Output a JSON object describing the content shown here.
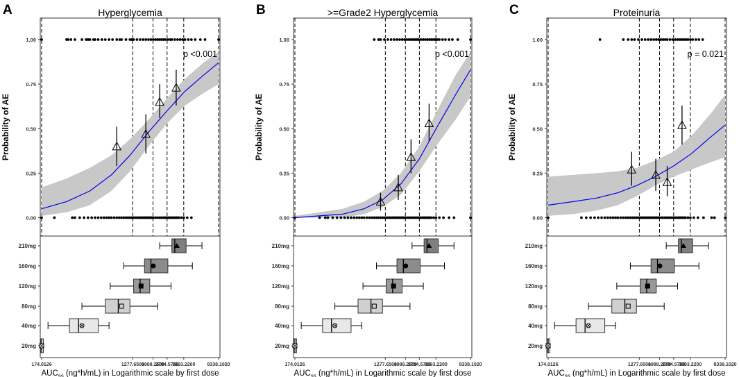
{
  "figure": {
    "x_axis_title_main": "AUC",
    "x_axis_title_sub": "ss",
    "x_axis_title_rest": " (ng*h/mL) in Logarithmic scale by first dose",
    "y_axis_title": "Probability of AE",
    "x_ticks": [
      174.0126,
      1277.65,
      1988.26,
      2704.57,
      3893.22,
      8338.102
    ],
    "x_tick_labels": [
      "174.0126",
      "1277.6500",
      "1988.2600",
      "2704.5700",
      "3893.2200",
      "8338.1020"
    ],
    "y_ticks": [
      0,
      0.25,
      0.5,
      0.75,
      1.0
    ],
    "y_tick_labels": [
      "0.00",
      "0.25",
      "0.50",
      "0.75",
      "1.00"
    ],
    "dose_labels": [
      "210mg",
      "160mg",
      "120mg",
      "80mg",
      "40mg",
      "20mg"
    ]
  },
  "chart_data": [
    {
      "type": "scatter",
      "panel_letter": "A",
      "title": "Hyperglycemia",
      "p_value": "p <0.001",
      "xlim": [
        174.0126,
        8338.102
      ],
      "ylim": [
        0,
        1
      ],
      "logistic_fit": {
        "x": [
          174,
          300,
          500,
          800,
          1200,
          1800,
          2700,
          4000,
          6000,
          8338
        ],
        "y": [
          0.05,
          0.09,
          0.15,
          0.24,
          0.35,
          0.48,
          0.6,
          0.71,
          0.8,
          0.87
        ]
      },
      "ci_lower": [
        0.01,
        0.03,
        0.07,
        0.15,
        0.26,
        0.4,
        0.53,
        0.63,
        0.7,
        0.75
      ],
      "ci_upper": [
        0.17,
        0.22,
        0.28,
        0.35,
        0.44,
        0.55,
        0.67,
        0.78,
        0.87,
        0.93
      ],
      "binned_means": [
        {
          "x": 900,
          "y": 0.4,
          "lo": 0.29,
          "hi": 0.51
        },
        {
          "x": 1700,
          "y": 0.47,
          "lo": 0.36,
          "hi": 0.58
        },
        {
          "x": 2300,
          "y": 0.65,
          "lo": 0.56,
          "hi": 0.75
        },
        {
          "x": 3300,
          "y": 0.73,
          "lo": 0.63,
          "hi": 0.83
        }
      ],
      "events_x": [
        174,
        300,
        310,
        330,
        360,
        420,
        460,
        480,
        500,
        540,
        560,
        600,
        650,
        700,
        760,
        820,
        900,
        960,
        1000,
        1100,
        1200,
        1250,
        1300,
        1400,
        1500,
        1600,
        1700,
        1800,
        1900,
        2000,
        2100,
        2200,
        2300,
        2400,
        2500,
        2600,
        2750,
        2900,
        3000,
        3200,
        3400,
        3600,
        3800,
        4000,
        4300,
        4600,
        5000,
        5600,
        6200,
        8338
      ],
      "no_events_x": [
        174,
        230,
        340,
        360,
        400,
        440,
        480,
        520,
        560,
        600,
        640,
        680,
        720,
        760,
        800,
        850,
        900,
        950,
        1000,
        1050,
        1100,
        1150,
        1200,
        1250,
        1300,
        1350,
        1400,
        1450,
        1500,
        1550,
        1600,
        1650,
        1700,
        1750,
        1800,
        1850,
        1900,
        1950,
        2000,
        2100,
        2200,
        2300,
        2400,
        2500,
        2600,
        2700,
        2800,
        2900,
        3000,
        3100,
        3200,
        3300,
        3400,
        3500,
        3700,
        3900,
        4200,
        4600
      ],
      "dose_boxes": [
        {
          "dose": "210mg",
          "min": 2300,
          "q1": 3000,
          "median": 3200,
          "mean": 3350,
          "q3": 4100,
          "max": 5800,
          "marker": "triangle-filled",
          "shade": "#7f7f7f"
        },
        {
          "dose": "160mg",
          "min": 1050,
          "q1": 1650,
          "median": 1900,
          "mean": 2000,
          "q3": 2750,
          "max": 4700,
          "marker": "circle-filled",
          "shade": "#8c8c8c"
        },
        {
          "dose": "120mg",
          "min": 780,
          "q1": 1300,
          "median": 1500,
          "mean": 1530,
          "q3": 1850,
          "max": 2950,
          "marker": "square-filled",
          "shade": "#999999"
        },
        {
          "dose": "80mg",
          "min": 420,
          "q1": 700,
          "median": 930,
          "mean": 1000,
          "q3": 1200,
          "max": 2200,
          "marker": "square-open",
          "shade": "#d0d0d0"
        },
        {
          "dose": "40mg",
          "min": 200,
          "q1": 320,
          "median": 390,
          "mean": 420,
          "q3": 600,
          "max": 760,
          "marker": "circle-cross",
          "shade": "#e8e8e8"
        },
        {
          "dose": "20mg",
          "min": 170,
          "q1": 170,
          "median": 174,
          "mean": 174,
          "q3": 178,
          "max": 178,
          "marker": "square-cross",
          "shade": "#ffffff"
        }
      ]
    },
    {
      "type": "scatter",
      "panel_letter": "B",
      "title": ">=Grade2 Hyperglycemia",
      "p_value": "p <0.001",
      "xlim": [
        174.0126,
        8338.102
      ],
      "ylim": [
        0,
        1
      ],
      "logistic_fit": {
        "x": [
          174,
          300,
          500,
          800,
          1200,
          1800,
          2700,
          4000,
          6000,
          8338
        ],
        "y": [
          0.0,
          0.01,
          0.02,
          0.05,
          0.1,
          0.19,
          0.33,
          0.51,
          0.69,
          0.83
        ]
      },
      "ci_lower": [
        0.0,
        0.0,
        0.0,
        0.02,
        0.06,
        0.13,
        0.26,
        0.41,
        0.55,
        0.68
      ],
      "ci_upper": [
        0.01,
        0.03,
        0.05,
        0.09,
        0.15,
        0.25,
        0.4,
        0.6,
        0.8,
        0.93
      ],
      "binned_means": [
        {
          "x": 1150,
          "y": 0.09,
          "lo": 0.04,
          "hi": 0.14
        },
        {
          "x": 1700,
          "y": 0.17,
          "lo": 0.1,
          "hi": 0.24
        },
        {
          "x": 2250,
          "y": 0.34,
          "lo": 0.25,
          "hi": 0.44
        },
        {
          "x": 3350,
          "y": 0.53,
          "lo": 0.43,
          "hi": 0.64
        }
      ],
      "events_x": [
        1000,
        1100,
        1150,
        1250,
        1350,
        1450,
        1550,
        1650,
        1750,
        1850,
        1950,
        2050,
        2150,
        2250,
        2350,
        2450,
        2550,
        2650,
        2800,
        2950,
        3100,
        3250,
        3400,
        3550,
        3700,
        3850,
        4000,
        4200,
        4500,
        4800,
        5200,
        5600,
        6300,
        8338
      ],
      "no_events_x": [
        174,
        300,
        340,
        360,
        400,
        440,
        480,
        520,
        560,
        600,
        640,
        680,
        720,
        760,
        800,
        850,
        900,
        950,
        1000,
        1050,
        1100,
        1150,
        1200,
        1250,
        1300,
        1350,
        1400,
        1450,
        1500,
        1550,
        1600,
        1650,
        1700,
        1750,
        1800,
        1850,
        1900,
        1950,
        2000,
        2100,
        2200,
        2300,
        2400,
        2500,
        2600,
        2700,
        2800,
        2900,
        3000,
        3100,
        3200,
        3300,
        3400,
        3500,
        3700,
        3900,
        4200,
        4600,
        5200,
        5800,
        8338
      ],
      "dose_boxes": [
        {
          "dose": "210mg",
          "min": 2300,
          "q1": 3000,
          "median": 3200,
          "mean": 3350,
          "q3": 4100,
          "max": 5800,
          "marker": "triangle-filled",
          "shade": "#7f7f7f"
        },
        {
          "dose": "160mg",
          "min": 1050,
          "q1": 1650,
          "median": 1900,
          "mean": 2000,
          "q3": 2750,
          "max": 4700,
          "marker": "circle-filled",
          "shade": "#8c8c8c"
        },
        {
          "dose": "120mg",
          "min": 780,
          "q1": 1300,
          "median": 1500,
          "mean": 1530,
          "q3": 1850,
          "max": 2950,
          "marker": "square-filled",
          "shade": "#999999"
        },
        {
          "dose": "80mg",
          "min": 420,
          "q1": 700,
          "median": 930,
          "mean": 1000,
          "q3": 1200,
          "max": 2200,
          "marker": "square-open",
          "shade": "#d0d0d0"
        },
        {
          "dose": "40mg",
          "min": 200,
          "q1": 320,
          "median": 390,
          "mean": 420,
          "q3": 600,
          "max": 760,
          "marker": "circle-cross",
          "shade": "#e8e8e8"
        },
        {
          "dose": "20mg",
          "min": 170,
          "q1": 170,
          "median": 174,
          "mean": 174,
          "q3": 178,
          "max": 178,
          "marker": "square-cross",
          "shade": "#ffffff"
        }
      ]
    },
    {
      "type": "scatter",
      "panel_letter": "C",
      "title": "Proteinuria",
      "p_value": "p = 0.021",
      "xlim": [
        174.0126,
        8338.102
      ],
      "ylim": [
        0,
        1
      ],
      "logistic_fit": {
        "x": [
          174,
          300,
          500,
          800,
          1200,
          1800,
          2700,
          4000,
          6000,
          8338
        ],
        "y": [
          0.07,
          0.09,
          0.11,
          0.14,
          0.18,
          0.23,
          0.29,
          0.36,
          0.45,
          0.52
        ]
      },
      "ci_lower": [
        0.01,
        0.02,
        0.04,
        0.07,
        0.12,
        0.18,
        0.23,
        0.27,
        0.31,
        0.34
      ],
      "ci_upper": [
        0.23,
        0.24,
        0.25,
        0.26,
        0.28,
        0.32,
        0.37,
        0.46,
        0.58,
        0.69
      ],
      "binned_means": [
        {
          "x": 1080,
          "y": 0.27,
          "lo": 0.18,
          "hi": 0.37
        },
        {
          "x": 1830,
          "y": 0.24,
          "lo": 0.15,
          "hi": 0.33
        },
        {
          "x": 2350,
          "y": 0.2,
          "lo": 0.12,
          "hi": 0.29
        },
        {
          "x": 3250,
          "y": 0.52,
          "lo": 0.41,
          "hi": 0.63
        }
      ],
      "events_x": [
        540,
        900,
        1000,
        1080,
        1150,
        1250,
        1350,
        1450,
        1550,
        1650,
        1750,
        1850,
        1950,
        2050,
        2150,
        2250,
        2350,
        2500,
        2650,
        2800,
        2950,
        3100,
        3250,
        3400,
        3550,
        3700,
        3900,
        4100,
        4400,
        4700,
        5100
      ],
      "no_events_x": [
        174,
        360,
        400,
        440,
        480,
        520,
        560,
        600,
        640,
        680,
        720,
        760,
        800,
        850,
        900,
        950,
        1000,
        1050,
        1100,
        1150,
        1200,
        1250,
        1300,
        1350,
        1400,
        1450,
        1500,
        1550,
        1600,
        1650,
        1700,
        1750,
        1800,
        1850,
        1900,
        1950,
        2000,
        2100,
        2200,
        2300,
        2400,
        2500,
        2600,
        2700,
        2800,
        2900,
        3000,
        3100,
        3200,
        3300,
        3400,
        3500,
        3700,
        3900,
        4200,
        4600,
        5200,
        6200,
        6600,
        8338
      ],
      "dose_boxes": [
        {
          "dose": "210mg",
          "min": 2300,
          "q1": 3000,
          "median": 3200,
          "mean": 3350,
          "q3": 4100,
          "max": 5800,
          "marker": "triangle-filled",
          "shade": "#7f7f7f"
        },
        {
          "dose": "160mg",
          "min": 1050,
          "q1": 1650,
          "median": 1900,
          "mean": 2000,
          "q3": 2750,
          "max": 4700,
          "marker": "circle-filled",
          "shade": "#8c8c8c"
        },
        {
          "dose": "120mg",
          "min": 780,
          "q1": 1300,
          "median": 1500,
          "mean": 1530,
          "q3": 1850,
          "max": 2950,
          "marker": "square-filled",
          "shade": "#999999"
        },
        {
          "dose": "80mg",
          "min": 420,
          "q1": 700,
          "median": 930,
          "mean": 1000,
          "q3": 1200,
          "max": 2200,
          "marker": "square-open",
          "shade": "#d0d0d0"
        },
        {
          "dose": "40mg",
          "min": 200,
          "q1": 320,
          "median": 390,
          "mean": 420,
          "q3": 600,
          "max": 760,
          "marker": "circle-cross",
          "shade": "#e8e8e8"
        },
        {
          "dose": "20mg",
          "min": 170,
          "q1": 170,
          "median": 174,
          "mean": 174,
          "q3": 178,
          "max": 178,
          "marker": "square-cross",
          "shade": "#ffffff"
        }
      ]
    }
  ],
  "colors": {
    "fit_line": "#0000ee",
    "ci_band": "#c8c8c8",
    "axis": "#333333",
    "points": "#000000"
  }
}
